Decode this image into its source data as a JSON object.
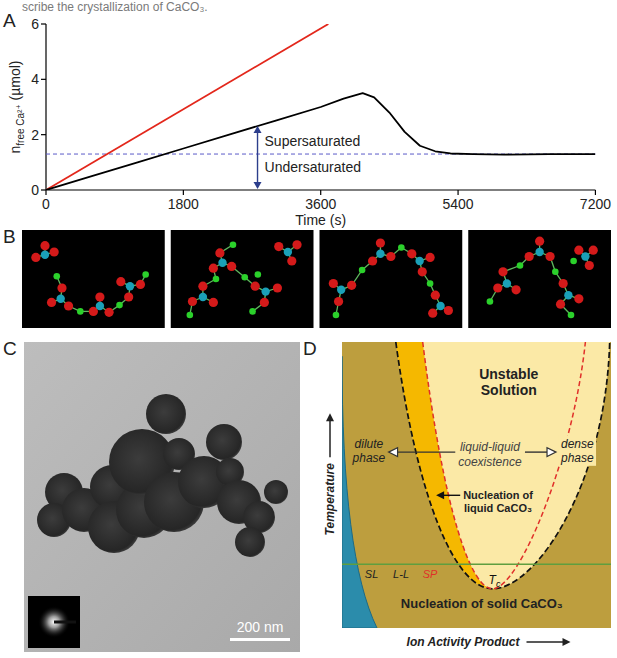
{
  "header": "scribe the crystallization of CaCO₃.",
  "panel_labels": [
    "A",
    "B",
    "C",
    "D"
  ],
  "chart_data": {
    "type": "line",
    "x_label": "Time (s)",
    "y_label": [
      "n",
      "free Ca²⁺",
      " (µmol)"
    ],
    "xlim": [
      0,
      7200
    ],
    "xticks": [
      0,
      1800,
      3600,
      5400,
      7200
    ],
    "ylim": [
      0,
      6
    ],
    "yticks": [
      0,
      2,
      4,
      6
    ],
    "series": [
      {
        "color": "#e3271b",
        "x": [
          0,
          3700
        ],
        "values": [
          0,
          6
        ]
      },
      {
        "color": "#000000",
        "x": [
          0,
          600,
          1200,
          1800,
          2400,
          3000,
          3600,
          3900,
          4150,
          4300,
          4500,
          4700,
          4900,
          5100,
          5300,
          5600,
          6000,
          6600,
          7200
        ],
        "values": [
          0,
          0.5,
          1.0,
          1.5,
          2.0,
          2.5,
          3.0,
          3.3,
          3.5,
          3.35,
          2.8,
          2.1,
          1.6,
          1.4,
          1.32,
          1.3,
          1.28,
          1.3,
          1.3
        ]
      }
    ],
    "threshold": {
      "value": 1.3,
      "color": "#5b5bc8"
    },
    "annotations": {
      "above": "Supersaturated",
      "below": "Undersaturated"
    }
  },
  "panel_c": {
    "scale_bar": "200 nm"
  },
  "panel_d": {
    "y_label": "Temperature",
    "x_label": "Ion Activity Product",
    "unstable": "Unstable Solution",
    "dilute": "dilute phase",
    "coexistence": "liquid-liquid coexistence",
    "dense": "dense phase",
    "liquid_nucleation": "Nucleation of liquid CaCO₃",
    "solid_nucleation": "Nucleation of solid CaCO₃",
    "curve_labels": [
      "SL",
      "L-L",
      "SP"
    ],
    "critical_point": [
      "T",
      "c"
    ]
  }
}
